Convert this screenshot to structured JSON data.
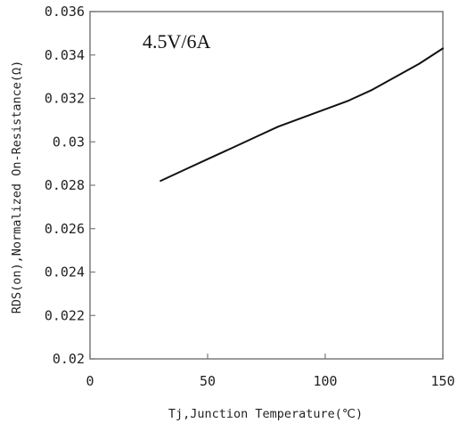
{
  "chart_data": {
    "type": "line",
    "title": "",
    "annotation": "4.5V/6A",
    "xlabel": "Tj,Junction Temperature(℃)",
    "ylabel": "RDS(on),Normalized On-Resistance(Ω)",
    "xlim": [
      0,
      150
    ],
    "ylim": [
      0.02,
      0.036
    ],
    "x_ticks": [
      0,
      50,
      100,
      150
    ],
    "x_tick_labels": [
      "0",
      "50",
      "100",
      "150"
    ],
    "y_ticks": [
      0.02,
      0.022,
      0.024,
      0.026,
      0.028,
      0.03,
      0.032,
      0.034,
      0.036
    ],
    "y_tick_labels": [
      "0.02",
      "0.022",
      "0.024",
      "0.026",
      "0.028",
      "0.03",
      "0.032",
      "0.034",
      "0.036"
    ],
    "grid": false,
    "legend": "none",
    "series": [
      {
        "x": [
          30,
          40,
          50,
          60,
          70,
          80,
          90,
          100,
          110,
          120,
          130,
          140,
          150
        ],
        "y": [
          0.0282,
          0.0287,
          0.0292,
          0.0297,
          0.0302,
          0.0307,
          0.0311,
          0.0315,
          0.0319,
          0.0324,
          0.033,
          0.0336,
          0.0343
        ],
        "color": "#111111"
      }
    ]
  }
}
